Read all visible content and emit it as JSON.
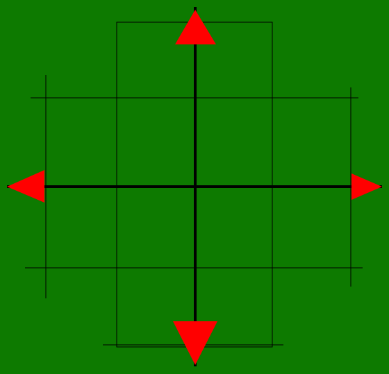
{
  "diagram": {
    "type": "four-way-direction-pad",
    "arrows": [
      "up",
      "down",
      "left",
      "right"
    ],
    "colors": {
      "background": "#0d7a00",
      "arrow": "#ff0000",
      "axis": "#000000",
      "grid": "#000000"
    }
  }
}
